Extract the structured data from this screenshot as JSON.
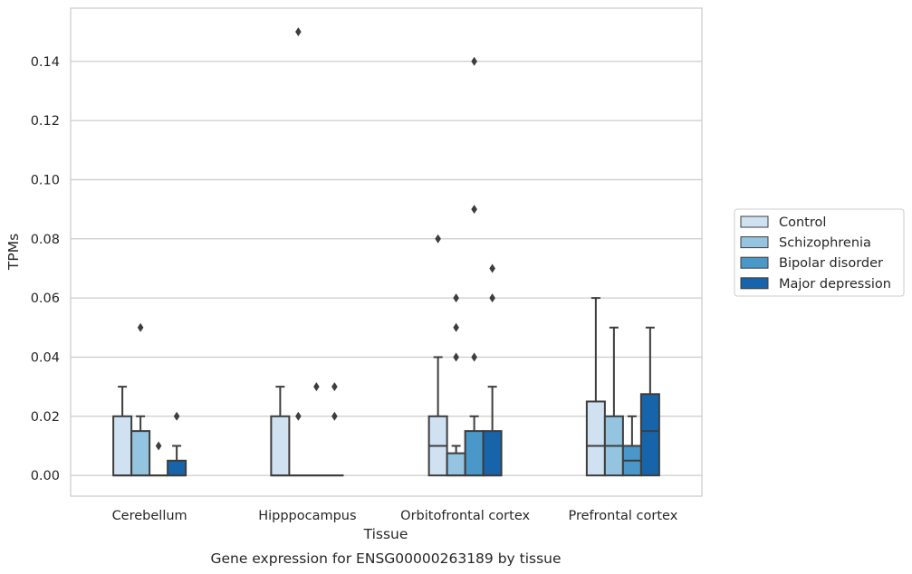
{
  "chart_data": {
    "type": "box",
    "title": "Gene expression for ENSG00000263189 by tissue",
    "xlabel": "Tissue",
    "ylabel": "TPMs",
    "ylim": [
      -0.007,
      0.158
    ],
    "yticks": [
      0.0,
      0.02,
      0.04,
      0.06,
      0.08,
      0.1,
      0.12,
      0.14
    ],
    "ytick_labels": [
      "0.00",
      "0.02",
      "0.04",
      "0.06",
      "0.08",
      "0.10",
      "0.12",
      "0.14"
    ],
    "grid": "horizontal",
    "legend_position": "right",
    "categories": [
      "Cerebellum",
      "Hipppocampus",
      "Orbitofrontal cortex",
      "Prefrontal cortex"
    ],
    "series": [
      {
        "name": "Control",
        "color": "#d0e1f2",
        "boxes": [
          {
            "q1": 0.0,
            "median": 0.0,
            "q3": 0.02,
            "whisker_low": 0.0,
            "whisker_high": 0.03,
            "outliers": []
          },
          {
            "q1": 0.0,
            "median": 0.0,
            "q3": 0.02,
            "whisker_low": 0.0,
            "whisker_high": 0.03,
            "outliers": []
          },
          {
            "q1": 0.0,
            "median": 0.01,
            "q3": 0.02,
            "whisker_low": 0.0,
            "whisker_high": 0.04,
            "outliers": [
              0.08
            ]
          },
          {
            "q1": 0.0,
            "median": 0.01,
            "q3": 0.025,
            "whisker_low": 0.0,
            "whisker_high": 0.06,
            "outliers": []
          }
        ]
      },
      {
        "name": "Schizophrenia",
        "color": "#94c4df",
        "boxes": [
          {
            "q1": 0.0,
            "median": 0.0,
            "q3": 0.015,
            "whisker_low": 0.0,
            "whisker_high": 0.02,
            "outliers": [
              0.05
            ]
          },
          {
            "q1": 0.0,
            "median": 0.0,
            "q3": 0.0,
            "whisker_low": 0.0,
            "whisker_high": 0.0,
            "outliers": [
              0.02,
              0.15
            ]
          },
          {
            "q1": 0.0,
            "median": 0.0,
            "q3": 0.0075,
            "whisker_low": 0.0,
            "whisker_high": 0.01,
            "outliers": [
              0.04,
              0.05,
              0.06
            ]
          },
          {
            "q1": 0.0,
            "median": 0.01,
            "q3": 0.02,
            "whisker_low": 0.0,
            "whisker_high": 0.05,
            "outliers": []
          }
        ]
      },
      {
        "name": "Bipolar disorder",
        "color": "#4a98c9",
        "boxes": [
          {
            "q1": 0.0,
            "median": 0.0,
            "q3": 0.0,
            "whisker_low": 0.0,
            "whisker_high": 0.0,
            "outliers": [
              0.01
            ]
          },
          {
            "q1": 0.0,
            "median": 0.0,
            "q3": 0.0,
            "whisker_low": 0.0,
            "whisker_high": 0.0,
            "outliers": [
              0.03
            ]
          },
          {
            "q1": 0.0,
            "median": 0.0,
            "q3": 0.015,
            "whisker_low": 0.0,
            "whisker_high": 0.02,
            "outliers": [
              0.04,
              0.09,
              0.14
            ]
          },
          {
            "q1": 0.0,
            "median": 0.005,
            "q3": 0.01,
            "whisker_low": 0.0,
            "whisker_high": 0.02,
            "outliers": []
          }
        ]
      },
      {
        "name": "Major depression",
        "color": "#1764ab",
        "boxes": [
          {
            "q1": 0.0,
            "median": 0.0,
            "q3": 0.005,
            "whisker_low": 0.0,
            "whisker_high": 0.01,
            "outliers": [
              0.02
            ]
          },
          {
            "q1": 0.0,
            "median": 0.0,
            "q3": 0.0,
            "whisker_low": 0.0,
            "whisker_high": 0.0,
            "outliers": [
              0.02,
              0.03
            ]
          },
          {
            "q1": 0.0,
            "median": 0.0,
            "q3": 0.015,
            "whisker_low": 0.0,
            "whisker_high": 0.03,
            "outliers": [
              0.06,
              0.07
            ]
          },
          {
            "q1": 0.0,
            "median": 0.015,
            "q3": 0.0275,
            "whisker_low": 0.0,
            "whisker_high": 0.05,
            "outliers": []
          }
        ]
      }
    ]
  }
}
